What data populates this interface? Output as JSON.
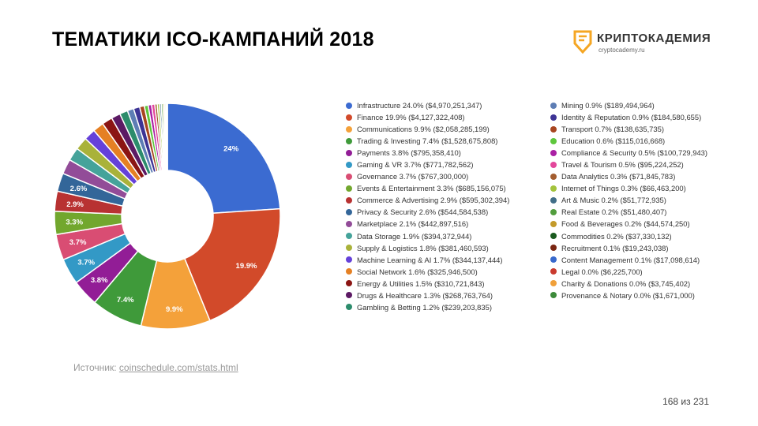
{
  "slide": {
    "title": "ТЕМАТИКИ ICO-КАМПАНИЙ 2018",
    "source_prefix": "Источник: ",
    "source_link": "coinschedule.com/stats.html",
    "page_number": "168 из 231"
  },
  "logo": {
    "name": "КРИПТОКАДЕМИЯ",
    "url_text": "cryptocademy.ru",
    "accent_color": "#f5a623",
    "icon": "shield-logo-icon"
  },
  "chart_data": {
    "type": "pie",
    "donut": true,
    "legend_position": "right",
    "categories": [
      "Infrastructure",
      "Finance",
      "Communications",
      "Trading & Investing",
      "Payments",
      "Gaming & VR",
      "Governance",
      "Events & Entertainment",
      "Commerce & Advertising",
      "Privacy & Security",
      "Marketplace",
      "Data Storage",
      "Supply & Logistics",
      "Machine Learning & AI",
      "Social Network",
      "Energy & Utilities",
      "Drugs & Healthcare",
      "Gambling & Betting",
      "Mining",
      "Identity & Reputation",
      "Transport",
      "Education",
      "Compliance & Security",
      "Travel & Tourism",
      "Data Analytics",
      "Internet of Things",
      "Art & Music",
      "Real Estate",
      "Food & Beverages",
      "Commodities",
      "Recruitment",
      "Content Management",
      "Legal",
      "Charity & Donations",
      "Provenance & Notary"
    ],
    "values": [
      4970251347,
      4127322408,
      2058285199,
      1528675808,
      795358410,
      771782562,
      767300000,
      685156075,
      595302394,
      544584538,
      442897516,
      394372944,
      381460593,
      344137444,
      325946500,
      310721843,
      268763764,
      239203835,
      189494964,
      184580655,
      138635735,
      115016668,
      100729943,
      95224252,
      71845783,
      66463200,
      51772935,
      51480407,
      44574250,
      37330132,
      19243038,
      17098614,
      6225700,
      3745402,
      1671000
    ],
    "legend_labels": [
      "Infrastructure 24.0% ($4,970,251,347)",
      "Finance 19.9% ($4,127,322,408)",
      "Communications 9.9% ($2,058,285,199)",
      "Trading & Investing 7.4% ($1,528,675,808)",
      "Payments 3.8% ($795,358,410)",
      "Gaming & VR 3.7% ($771,782,562)",
      "Governance 3.7% ($767,300,000)",
      "Events & Entertainment 3.3% ($685,156,075)",
      "Commerce & Advertising 2.9% ($595,302,394)",
      "Privacy & Security 2.6% ($544,584,538)",
      "Marketplace 2.1% ($442,897,516)",
      "Data Storage 1.9% ($394,372,944)",
      "Supply & Logistics 1.8% ($381,460,593)",
      "Machine Learning & AI 1.7% ($344,137,444)",
      "Social Network 1.6% ($325,946,500)",
      "Energy & Utilities 1.5% ($310,721,843)",
      "Drugs & Healthcare 1.3% ($268,763,764)",
      "Gambling & Betting 1.2% ($239,203,835)",
      "Mining 0.9% ($189,494,964)",
      "Identity & Reputation 0.9% ($184,580,655)",
      "Transport 0.7% ($138,635,735)",
      "Education 0.6% ($115,016,668)",
      "Compliance & Security 0.5% ($100,729,943)",
      "Travel & Tourism 0.5% ($95,224,252)",
      "Data Analytics 0.3% ($71,845,783)",
      "Internet of Things 0.3% ($66,463,200)",
      "Art & Music 0.2% ($51,772,935)",
      "Real Estate 0.2% ($51,480,407)",
      "Food & Beverages 0.2% ($44,574,250)",
      "Commodities 0.2% ($37,330,132)",
      "Recruitment 0.1% ($19,243,038)",
      "Content Management 0.1% ($17,098,614)",
      "Legal 0.0% ($6,225,700)",
      "Charity & Donations 0.0% ($3,745,402)",
      "Provenance & Notary 0.0% ($1,671,000)"
    ],
    "slice_labels": [
      "24%",
      "19.9%",
      "9.9%",
      "7.4%",
      "3.8%",
      "3.7%",
      "3.7%",
      "3.3%",
      "2.9%",
      "2.6%",
      "",
      "",
      "",
      "",
      "",
      "",
      "",
      "",
      "",
      "",
      "",
      "",
      "",
      "",
      "",
      "",
      "",
      "",
      "",
      "",
      "",
      "",
      "",
      "",
      ""
    ],
    "colors": [
      "#3b6bd1",
      "#d24a2a",
      "#f4a13a",
      "#3f9a3a",
      "#921d96",
      "#3399c6",
      "#d94d73",
      "#72a72e",
      "#b83232",
      "#336699",
      "#924c98",
      "#45a39a",
      "#a9b23a",
      "#6541d9",
      "#e58024",
      "#8b1513",
      "#5c1a64",
      "#2c8c6c",
      "#5d7db4",
      "#3d3495",
      "#a84520",
      "#5ec73c",
      "#aa20a4",
      "#e3479b",
      "#a35d30",
      "#a3c33c",
      "#416e88",
      "#529d3d",
      "#c39a2a",
      "#1a5a1e",
      "#7a2612",
      "#3869cc",
      "#c93a2e",
      "#f0a03a",
      "#3c8a3a"
    ],
    "legend_split": 18
  }
}
